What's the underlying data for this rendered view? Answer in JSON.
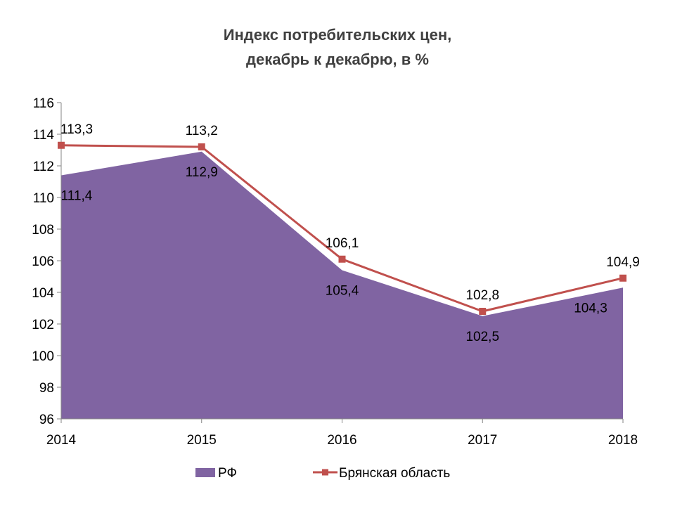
{
  "chart_data": {
    "type": "area",
    "title_line1": "Индекс потребительских цен,",
    "title_line2": "декабрь к декабрю, в %",
    "categories": [
      "2014",
      "2015",
      "2016",
      "2017",
      "2018"
    ],
    "ylim": [
      96,
      116
    ],
    "yticks": [
      96,
      98,
      100,
      102,
      104,
      106,
      108,
      110,
      112,
      114,
      116
    ],
    "series": [
      {
        "name": "РФ",
        "kind": "area",
        "color": "#8064a2",
        "values": [
          111.4,
          112.9,
          105.4,
          102.5,
          104.3
        ],
        "labels": [
          "111,4",
          "112,9",
          "105,4",
          "102,5",
          "104,3"
        ]
      },
      {
        "name": "Брянская область",
        "kind": "line",
        "color": "#c0504d",
        "values": [
          113.3,
          113.2,
          106.1,
          102.8,
          104.9
        ],
        "labels": [
          "113,3",
          "113,2",
          "106,1",
          "102,8",
          "104,9"
        ]
      }
    ],
    "legend_position": "bottom",
    "grid": false
  }
}
